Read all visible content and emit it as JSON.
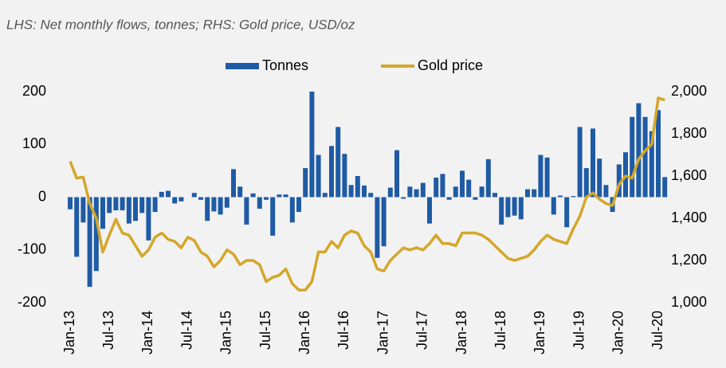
{
  "chart_data": {
    "type": "combo",
    "subtitle": "LHS: Net monthly flows, tonnes; RHS: Gold price, USD/oz",
    "categories": [
      "Jan-13",
      null,
      null,
      null,
      null,
      null,
      "Jul-13",
      null,
      null,
      null,
      null,
      null,
      "Jan-14",
      null,
      null,
      null,
      null,
      null,
      "Jul-14",
      null,
      null,
      null,
      null,
      null,
      "Jan-15",
      null,
      null,
      null,
      null,
      null,
      "Jul-15",
      null,
      null,
      null,
      null,
      null,
      "Jan-16",
      null,
      null,
      null,
      null,
      null,
      "Jul-16",
      null,
      null,
      null,
      null,
      null,
      "Jan-17",
      null,
      null,
      null,
      null,
      null,
      "Jul-17",
      null,
      null,
      null,
      null,
      null,
      "Jan-18",
      null,
      null,
      null,
      null,
      null,
      "Jul-18",
      null,
      null,
      null,
      null,
      null,
      "Jan-19",
      null,
      null,
      null,
      null,
      null,
      "Jul-19",
      null,
      null,
      null,
      null,
      null,
      "Jan-20",
      null,
      null,
      null,
      null,
      null,
      "Jul-20",
      null
    ],
    "series": [
      {
        "name": "Tonnes",
        "type": "bar",
        "color": "#1f5ba5",
        "values": [
          -23,
          -113,
          -48,
          -170,
          -140,
          -60,
          -30,
          -25,
          -25,
          -50,
          -45,
          -30,
          -82,
          -28,
          10,
          12,
          -12,
          -8,
          0,
          8,
          -5,
          -45,
          -27,
          -33,
          -20,
          53,
          20,
          -52,
          7,
          -22,
          -5,
          -73,
          5,
          5,
          -48,
          -28,
          55,
          200,
          80,
          8,
          97,
          133,
          82,
          23,
          40,
          22,
          8,
          -115,
          -93,
          18,
          89,
          -3,
          20,
          15,
          27,
          -50,
          37,
          44,
          -5,
          20,
          50,
          33,
          -5,
          20,
          72,
          8,
          -52,
          -38,
          -35,
          -42,
          15,
          15,
          80,
          75,
          -33,
          3,
          -57,
          2,
          133,
          55,
          130,
          73,
          23,
          -28,
          62,
          85,
          152,
          178,
          152,
          125,
          165,
          38
        ]
      },
      {
        "name": "Gold price",
        "type": "line",
        "axis": "y2",
        "color": "#d4a62a",
        "values": [
          1670,
          1590,
          1595,
          1470,
          1400,
          1240,
          1320,
          1395,
          1330,
          1320,
          1270,
          1220,
          1250,
          1310,
          1330,
          1300,
          1290,
          1260,
          1310,
          1295,
          1240,
          1220,
          1170,
          1200,
          1250,
          1230,
          1180,
          1200,
          1200,
          1180,
          1100,
          1120,
          1130,
          1160,
          1090,
          1060,
          1060,
          1100,
          1240,
          1240,
          1290,
          1260,
          1320,
          1340,
          1330,
          1270,
          1240,
          1160,
          1150,
          1200,
          1230,
          1260,
          1250,
          1260,
          1250,
          1280,
          1320,
          1280,
          1280,
          1270,
          1330,
          1330,
          1330,
          1320,
          1300,
          1270,
          1240,
          1210,
          1200,
          1210,
          1220,
          1250,
          1290,
          1320,
          1300,
          1290,
          1280,
          1350,
          1410,
          1500,
          1520,
          1490,
          1470,
          1460,
          1560,
          1600,
          1590,
          1680,
          1720,
          1750,
          1970,
          1960
        ]
      }
    ],
    "ylim": [
      -200,
      200
    ],
    "yticks": [
      -200,
      -100,
      0,
      100,
      200
    ],
    "y2lim": [
      1000,
      2000
    ],
    "y2ticks": [
      {
        "value": 1000,
        "label": "1,000"
      },
      {
        "value": 1200,
        "label": "1,200"
      },
      {
        "value": 1400,
        "label": "1,400"
      },
      {
        "value": 1600,
        "label": "1,600"
      },
      {
        "value": 1800,
        "label": "1,800"
      },
      {
        "value": 2000,
        "label": "2,000"
      }
    ],
    "legend": "top",
    "grid": false
  }
}
